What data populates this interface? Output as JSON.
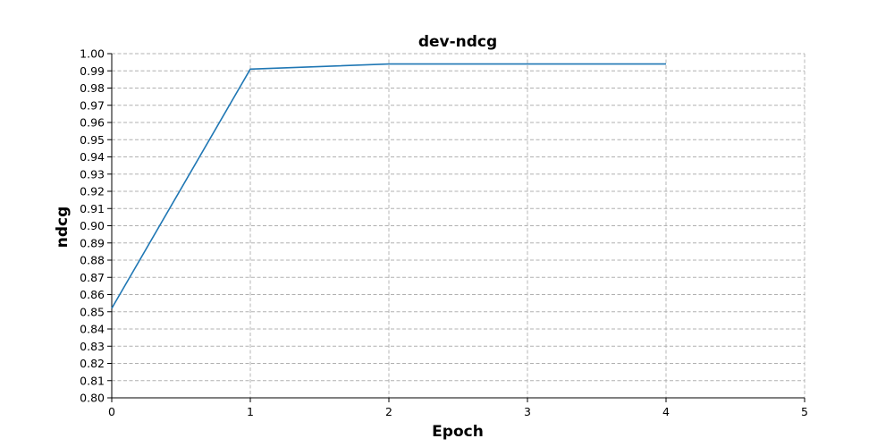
{
  "chart_data": {
    "type": "line",
    "title": "dev-ndcg",
    "xlabel": "Epoch",
    "ylabel": "ndcg",
    "xlim": [
      0,
      5
    ],
    "ylim": [
      0.8,
      1.0
    ],
    "x_ticks": [
      "0",
      "1",
      "2",
      "3",
      "4",
      "5"
    ],
    "y_ticks": [
      "0.80",
      "0.81",
      "0.82",
      "0.83",
      "0.84",
      "0.85",
      "0.86",
      "0.87",
      "0.88",
      "0.89",
      "0.90",
      "0.91",
      "0.92",
      "0.93",
      "0.94",
      "0.95",
      "0.96",
      "0.97",
      "0.98",
      "0.99",
      "1.00"
    ],
    "grid": true,
    "series": [
      {
        "color": "#1f77b4",
        "x": [
          0,
          1,
          2,
          3,
          4
        ],
        "y": [
          0.852,
          0.991,
          0.994,
          0.994,
          0.994
        ]
      }
    ]
  }
}
